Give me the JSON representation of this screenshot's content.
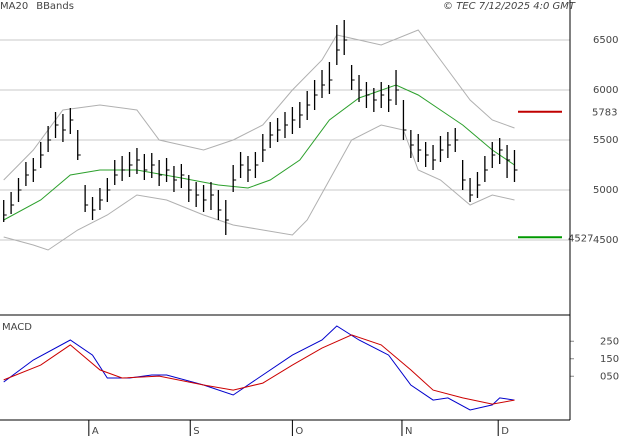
{
  "chart_data": [
    {
      "type": "ohlc",
      "legend": [
        {
          "name": "MA20",
          "color": "#2ca02c"
        },
        {
          "name": "BBands",
          "color": "#b0b0b0"
        }
      ],
      "caption": "© TEC 7/12/2025 4:0 GMT",
      "xlim": [
        -0.5,
        76.5
      ],
      "xticks": [
        {
          "value": 11.5,
          "label": "A"
        },
        {
          "value": 25.2,
          "label": "S"
        },
        {
          "value": 39,
          "label": "O"
        },
        {
          "value": 53.8,
          "label": "N"
        },
        {
          "value": 66.8,
          "label": "D"
        }
      ],
      "ylim": [
        3750,
        6900
      ],
      "yticks": [
        4500,
        5000,
        5500,
        6000,
        6500
      ],
      "grid": true,
      "bar_color": "#000000",
      "close": [
        4750,
        4850,
        5000,
        5150,
        5200,
        5350,
        5500,
        5650,
        5600,
        5700,
        5350,
        4850,
        4800,
        4900,
        5000,
        5150,
        5200,
        5250,
        5300,
        5200,
        5250,
        5150,
        5200,
        5100,
        5150,
        5000,
        4950,
        4900,
        4950,
        4800,
        4700,
        5100,
        5250,
        5200,
        5250,
        5400,
        5550,
        5600,
        5650,
        5700,
        5750,
        5850,
        5950,
        6050,
        6100,
        6400,
        6500,
        6100,
        6000,
        5950,
        5900,
        5950,
        5900,
        6000,
        5600,
        5450,
        5400,
        5350,
        5300,
        5400,
        5450,
        5500,
        5100,
        4950,
        5050,
        5200,
        5350,
        5400,
        5300,
        5200
      ],
      "high": [
        4900,
        4980,
        5120,
        5280,
        5320,
        5480,
        5640,
        5780,
        5760,
        5820,
        5600,
        5050,
        4930,
        5020,
        5120,
        5300,
        5340,
        5380,
        5420,
        5360,
        5370,
        5300,
        5320,
        5240,
        5260,
        5150,
        5080,
        5050,
        5080,
        5000,
        4900,
        5250,
        5380,
        5340,
        5380,
        5560,
        5680,
        5720,
        5780,
        5830,
        5880,
        5990,
        6100,
        6200,
        6280,
        6650,
        6700,
        6250,
        6150,
        6080,
        6020,
        6080,
        6050,
        6200,
        5900,
        5600,
        5560,
        5480,
        5450,
        5540,
        5580,
        5620,
        5300,
        5120,
        5180,
        5340,
        5480,
        5520,
        5450,
        5400
      ],
      "low": [
        4680,
        4760,
        4880,
        5040,
        5080,
        5220,
        5380,
        5520,
        5480,
        5560,
        5300,
        4780,
        4700,
        4800,
        4880,
        5050,
        5090,
        5130,
        5160,
        5100,
        5120,
        5040,
        5080,
        4980,
        5020,
        4880,
        4830,
        4780,
        4800,
        4700,
        4550,
        4980,
        5120,
        5080,
        5120,
        5280,
        5420,
        5480,
        5520,
        5560,
        5620,
        5700,
        5800,
        5920,
        5960,
        6250,
        6350,
        6000,
        5880,
        5820,
        5780,
        5820,
        5780,
        5850,
        5500,
        5320,
        5280,
        5230,
        5200,
        5280,
        5320,
        5380,
        5000,
        4880,
        4920,
        5080,
        5220,
        5260,
        5120,
        5080
      ],
      "overlays": [
        {
          "name": "MA20",
          "color": "#2ca02c",
          "x": [
            0,
            5,
            9,
            13,
            18,
            24,
            29,
            33,
            36,
            40,
            44,
            48,
            53,
            56,
            59,
            62,
            66,
            69
          ],
          "values": [
            4700,
            4900,
            5150,
            5200,
            5200,
            5120,
            5050,
            5020,
            5100,
            5300,
            5700,
            5920,
            6050,
            5950,
            5800,
            5650,
            5400,
            5250
          ]
        },
        {
          "name": "BBands",
          "color": "#b0b0b0",
          "x": [
            0,
            4,
            8,
            13,
            18,
            21,
            27,
            31,
            35,
            39,
            43,
            45,
            51,
            56,
            59,
            63,
            66,
            69
          ],
          "values": [
            5100,
            5400,
            5800,
            5850,
            5800,
            5500,
            5400,
            5500,
            5650,
            6000,
            6300,
            6550,
            6450,
            6600,
            6300,
            5900,
            5700,
            5620
          ]
        },
        {
          "name": "BBands",
          "color": "#b0b0b0",
          "x": [
            0,
            4,
            6,
            10,
            14,
            18,
            22,
            27,
            31,
            35,
            39,
            41,
            44,
            47,
            51,
            54,
            56,
            59,
            63,
            66,
            69
          ],
          "values": [
            4530,
            4450,
            4400,
            4600,
            4750,
            4950,
            4900,
            4750,
            4650,
            4600,
            4550,
            4700,
            5100,
            5500,
            5650,
            5600,
            5200,
            5100,
            4850,
            4950,
            4900
          ]
        }
      ],
      "levels": [
        {
          "value": 5783,
          "label": "5783",
          "color": "#c00000"
        },
        {
          "value": 4527,
          "label": "4527",
          "color": "#009900"
        }
      ]
    },
    {
      "type": "line",
      "title": "MACD",
      "xlim": [
        -0.5,
        76.5
      ],
      "ylim": [
        -2,
        4
      ],
      "yticks": [
        {
          "value": 2.5,
          "label": "250"
        },
        {
          "value": 1.5,
          "label": "150"
        },
        {
          "value": 0.5,
          "label": "050"
        }
      ],
      "series": [
        {
          "color": "#0000cc",
          "x": [
            0,
            4,
            9,
            12,
            14,
            17,
            20,
            22,
            27,
            31,
            35,
            39,
            43,
            45,
            48,
            52,
            55,
            58,
            60,
            63,
            66,
            67,
            69
          ],
          "values": [
            0.17,
            1.43,
            2.57,
            1.71,
            0.4,
            0.4,
            0.57,
            0.57,
            0,
            -0.57,
            0.57,
            1.71,
            2.57,
            3.37,
            2.57,
            1.71,
            0,
            -0.86,
            -0.74,
            -1.43,
            -1.14,
            -0.74,
            -0.86
          ]
        },
        {
          "color": "#cc0000",
          "x": [
            0,
            5,
            9,
            13,
            16,
            21,
            27,
            31,
            35,
            39,
            43,
            47,
            51,
            55,
            58,
            62,
            66,
            69
          ],
          "values": [
            0.29,
            1.14,
            2.29,
            0.86,
            0.4,
            0.51,
            0,
            -0.29,
            0.11,
            1.14,
            2.11,
            2.86,
            2.29,
            0.86,
            -0.29,
            -0.74,
            -1.09,
            -0.86
          ]
        }
      ]
    }
  ]
}
